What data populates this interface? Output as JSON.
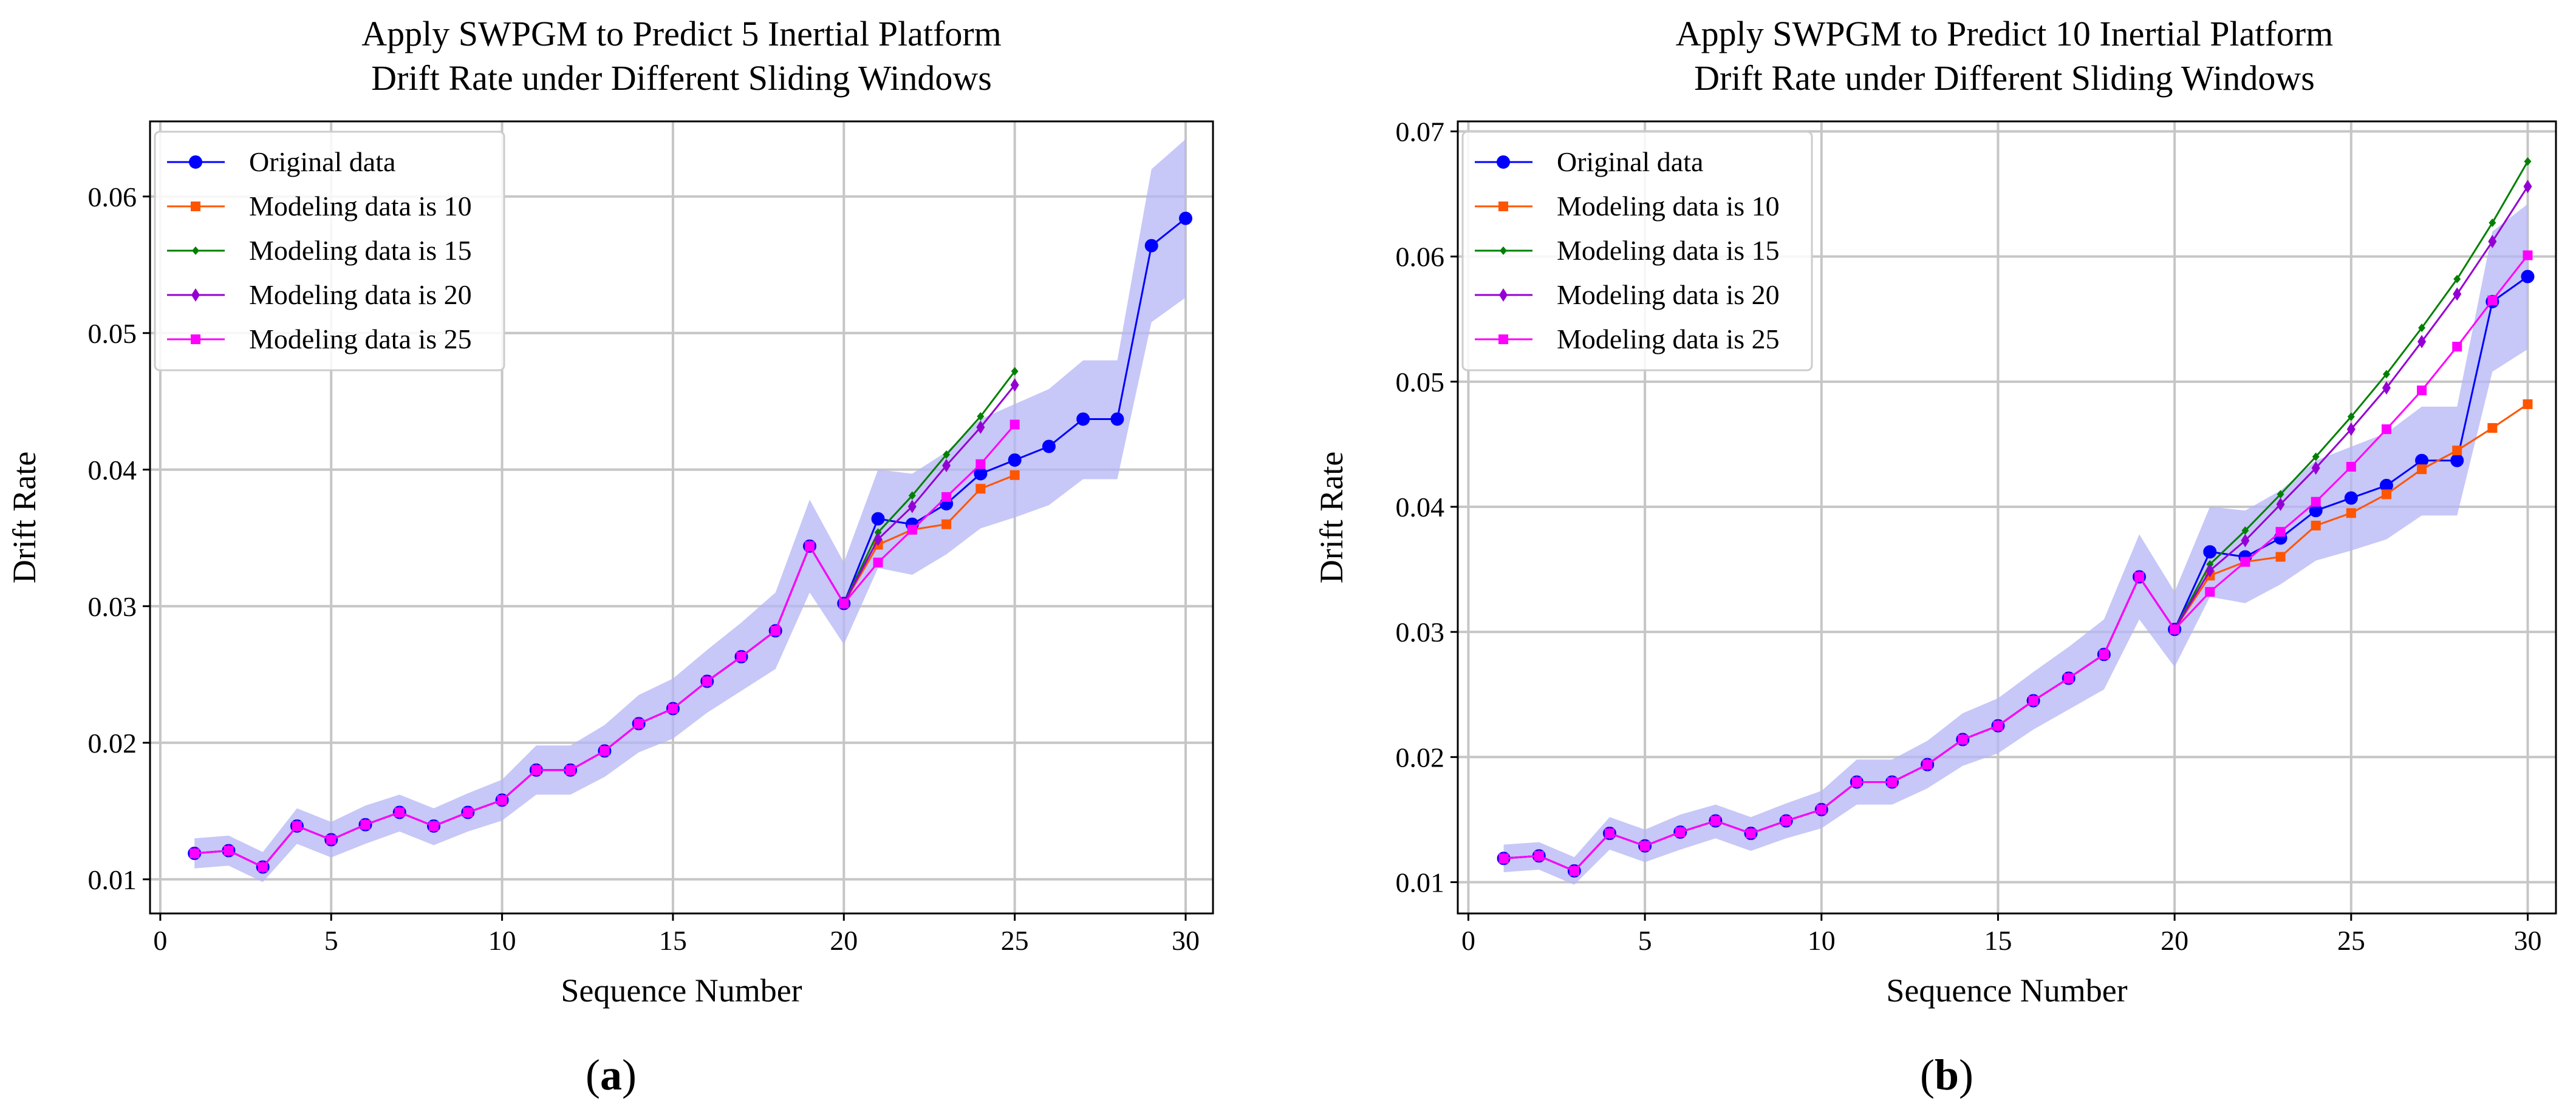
{
  "colors": {
    "original": "#0000ff",
    "m10": "#ff5500",
    "m15": "#008000",
    "m20": "#9400d3",
    "m25": "#ff00ff",
    "band": "#b4b4f5",
    "grid": "#c6c6c6"
  },
  "chart_data": [
    {
      "type": "line",
      "caption": "a",
      "title_lines": [
        "Apply SWPGM to Predict 5 Inertial Platform",
        "Drift Rate under Different Sliding Windows"
      ],
      "xlabel": "Sequence Number",
      "ylabel": "Drift Rate",
      "xlim": [
        -0.3,
        30.8
      ],
      "ylim": [
        0.0075,
        0.0655
      ],
      "xticks": [
        0,
        5,
        10,
        15,
        20,
        25,
        30
      ],
      "yticks": [
        0.01,
        0.02,
        0.03,
        0.04,
        0.05,
        0.06
      ],
      "grid": true,
      "legend_position": "upper-left",
      "band": {
        "x": [
          1,
          2,
          3,
          4,
          5,
          6,
          7,
          8,
          9,
          10,
          11,
          12,
          13,
          14,
          15,
          16,
          17,
          18,
          19,
          20,
          21,
          22,
          23,
          24,
          25,
          26,
          27,
          28,
          29,
          30
        ],
        "lower": [
          0.0108,
          0.011,
          0.0098,
          0.0126,
          0.0116,
          0.0126,
          0.0135,
          0.0125,
          0.0135,
          0.0143,
          0.0162,
          0.0162,
          0.0175,
          0.0193,
          0.0203,
          0.0222,
          0.0238,
          0.0254,
          0.031,
          0.0272,
          0.0328,
          0.0323,
          0.0338,
          0.0357,
          0.0365,
          0.0374,
          0.0393,
          0.0393,
          0.0508,
          0.0526
        ],
        "upper": [
          0.013,
          0.0132,
          0.012,
          0.0152,
          0.0142,
          0.0154,
          0.0162,
          0.0152,
          0.0163,
          0.0173,
          0.0198,
          0.0198,
          0.0213,
          0.0235,
          0.0247,
          0.0268,
          0.0288,
          0.031,
          0.0378,
          0.0332,
          0.04,
          0.0397,
          0.0413,
          0.0437,
          0.0448,
          0.0459,
          0.048,
          0.048,
          0.062,
          0.0642
        ]
      },
      "series": [
        {
          "name": "Original data",
          "key": "original",
          "marker": "circle",
          "x": [
            1,
            2,
            3,
            4,
            5,
            6,
            7,
            8,
            9,
            10,
            11,
            12,
            13,
            14,
            15,
            16,
            17,
            18,
            19,
            20,
            21,
            22,
            23,
            24,
            25,
            26,
            27,
            28,
            29,
            30
          ],
          "y": [
            0.0119,
            0.0121,
            0.0109,
            0.0139,
            0.0129,
            0.014,
            0.0149,
            0.0139,
            0.0149,
            0.0158,
            0.018,
            0.018,
            0.0194,
            0.0214,
            0.0225,
            0.0245,
            0.0263,
            0.0282,
            0.0344,
            0.0302,
            0.0364,
            0.036,
            0.0375,
            0.0397,
            0.0407,
            0.0417,
            0.0437,
            0.0437,
            0.0564,
            0.0584
          ]
        },
        {
          "name": "Modeling data is 10",
          "key": "m10",
          "marker": "square",
          "x": [
            1,
            2,
            3,
            4,
            5,
            6,
            7,
            8,
            9,
            10,
            11,
            12,
            13,
            14,
            15,
            16,
            17,
            18,
            19,
            20,
            21,
            22,
            23,
            24,
            25
          ],
          "y": [
            0.0119,
            0.0121,
            0.0109,
            0.0139,
            0.0129,
            0.014,
            0.0149,
            0.0139,
            0.0149,
            0.0158,
            0.018,
            0.018,
            0.0194,
            0.0214,
            0.0225,
            0.0245,
            0.0263,
            0.0282,
            0.0344,
            0.0302,
            0.0345,
            0.0356,
            0.036,
            0.0386,
            0.0396
          ]
        },
        {
          "name": "Modeling data is 15",
          "key": "m15",
          "marker": "plus",
          "x": [
            1,
            2,
            3,
            4,
            5,
            6,
            7,
            8,
            9,
            10,
            11,
            12,
            13,
            14,
            15,
            16,
            17,
            18,
            19,
            20,
            21,
            22,
            23,
            24,
            25
          ],
          "y": [
            0.0119,
            0.0121,
            0.0109,
            0.0139,
            0.0129,
            0.014,
            0.0149,
            0.0139,
            0.0149,
            0.0158,
            0.018,
            0.018,
            0.0194,
            0.0214,
            0.0225,
            0.0245,
            0.0263,
            0.0282,
            0.0344,
            0.0302,
            0.0354,
            0.0381,
            0.0411,
            0.0439,
            0.0472
          ]
        },
        {
          "name": "Modeling data is 20",
          "key": "m20",
          "marker": "diamond",
          "x": [
            1,
            2,
            3,
            4,
            5,
            6,
            7,
            8,
            9,
            10,
            11,
            12,
            13,
            14,
            15,
            16,
            17,
            18,
            19,
            20,
            21,
            22,
            23,
            24,
            25
          ],
          "y": [
            0.0119,
            0.0121,
            0.0109,
            0.0139,
            0.0129,
            0.014,
            0.0149,
            0.0139,
            0.0149,
            0.0158,
            0.018,
            0.018,
            0.0194,
            0.0214,
            0.0225,
            0.0245,
            0.0263,
            0.0282,
            0.0344,
            0.0302,
            0.0349,
            0.0373,
            0.0403,
            0.0431,
            0.0462
          ]
        },
        {
          "name": "Modeling data is 25",
          "key": "m25",
          "marker": "square",
          "x": [
            1,
            2,
            3,
            4,
            5,
            6,
            7,
            8,
            9,
            10,
            11,
            12,
            13,
            14,
            15,
            16,
            17,
            18,
            19,
            20,
            21,
            22,
            23,
            24,
            25
          ],
          "y": [
            0.0119,
            0.0121,
            0.0109,
            0.0139,
            0.0129,
            0.014,
            0.0149,
            0.0139,
            0.0149,
            0.0158,
            0.018,
            0.018,
            0.0194,
            0.0214,
            0.0225,
            0.0245,
            0.0263,
            0.0282,
            0.0344,
            0.0302,
            0.0332,
            0.0356,
            0.038,
            0.0404,
            0.0433
          ]
        }
      ]
    },
    {
      "type": "line",
      "caption": "b",
      "title_lines": [
        "Apply SWPGM to Predict 10 Inertial Platform",
        "Drift Rate under Different Sliding Windows"
      ],
      "xlabel": "Sequence Number",
      "ylabel": "Drift Rate",
      "xlim": [
        -0.3,
        30.8
      ],
      "ylim": [
        0.0075,
        0.0708
      ],
      "xticks": [
        0,
        5,
        10,
        15,
        20,
        25,
        30
      ],
      "yticks": [
        0.01,
        0.02,
        0.03,
        0.04,
        0.05,
        0.06,
        0.07
      ],
      "grid": true,
      "legend_position": "upper-left",
      "band": {
        "x": [
          1,
          2,
          3,
          4,
          5,
          6,
          7,
          8,
          9,
          10,
          11,
          12,
          13,
          14,
          15,
          16,
          17,
          18,
          19,
          20,
          21,
          22,
          23,
          24,
          25,
          26,
          27,
          28,
          29,
          30
        ],
        "lower": [
          0.0108,
          0.011,
          0.0098,
          0.0126,
          0.0116,
          0.0126,
          0.0135,
          0.0125,
          0.0135,
          0.0143,
          0.0162,
          0.0162,
          0.0175,
          0.0193,
          0.0203,
          0.0222,
          0.0238,
          0.0254,
          0.031,
          0.0272,
          0.0328,
          0.0323,
          0.0338,
          0.0357,
          0.0365,
          0.0374,
          0.0393,
          0.0393,
          0.0508,
          0.0526
        ],
        "upper": [
          0.013,
          0.0132,
          0.012,
          0.0152,
          0.0142,
          0.0154,
          0.0162,
          0.0152,
          0.0163,
          0.0173,
          0.0198,
          0.0198,
          0.0213,
          0.0235,
          0.0247,
          0.0268,
          0.0288,
          0.031,
          0.0378,
          0.0332,
          0.04,
          0.0397,
          0.0413,
          0.0437,
          0.0448,
          0.0459,
          0.048,
          0.048,
          0.062,
          0.0642
        ]
      },
      "series": [
        {
          "name": "Original data",
          "key": "original",
          "marker": "circle",
          "x": [
            1,
            2,
            3,
            4,
            5,
            6,
            7,
            8,
            9,
            10,
            11,
            12,
            13,
            14,
            15,
            16,
            17,
            18,
            19,
            20,
            21,
            22,
            23,
            24,
            25,
            26,
            27,
            28,
            29,
            30
          ],
          "y": [
            0.0119,
            0.0121,
            0.0109,
            0.0139,
            0.0129,
            0.014,
            0.0149,
            0.0139,
            0.0149,
            0.0158,
            0.018,
            0.018,
            0.0194,
            0.0214,
            0.0225,
            0.0245,
            0.0263,
            0.0282,
            0.0344,
            0.0302,
            0.0364,
            0.036,
            0.0375,
            0.0397,
            0.0407,
            0.0417,
            0.0437,
            0.0437,
            0.0564,
            0.0584
          ]
        },
        {
          "name": "Modeling data is 10",
          "key": "m10",
          "marker": "square",
          "x": [
            1,
            2,
            3,
            4,
            5,
            6,
            7,
            8,
            9,
            10,
            11,
            12,
            13,
            14,
            15,
            16,
            17,
            18,
            19,
            20,
            21,
            22,
            23,
            24,
            25,
            26,
            27,
            28,
            29,
            30
          ],
          "y": [
            0.0119,
            0.0121,
            0.0109,
            0.0139,
            0.0129,
            0.014,
            0.0149,
            0.0139,
            0.0149,
            0.0158,
            0.018,
            0.018,
            0.0194,
            0.0214,
            0.0225,
            0.0245,
            0.0263,
            0.0282,
            0.0344,
            0.0302,
            0.0345,
            0.0356,
            0.036,
            0.0385,
            0.0395,
            0.041,
            0.043,
            0.0445,
            0.0463,
            0.0482
          ]
        },
        {
          "name": "Modeling data is 15",
          "key": "m15",
          "marker": "plus",
          "x": [
            1,
            2,
            3,
            4,
            5,
            6,
            7,
            8,
            9,
            10,
            11,
            12,
            13,
            14,
            15,
            16,
            17,
            18,
            19,
            20,
            21,
            22,
            23,
            24,
            25,
            26,
            27,
            28,
            29,
            30
          ],
          "y": [
            0.0119,
            0.0121,
            0.0109,
            0.0139,
            0.0129,
            0.014,
            0.0149,
            0.0139,
            0.0149,
            0.0158,
            0.018,
            0.018,
            0.0194,
            0.0214,
            0.0225,
            0.0245,
            0.0263,
            0.0282,
            0.0344,
            0.0302,
            0.0354,
            0.0381,
            0.041,
            0.044,
            0.0472,
            0.0506,
            0.0543,
            0.0582,
            0.0627,
            0.0676
          ]
        },
        {
          "name": "Modeling data is 20",
          "key": "m20",
          "marker": "diamond",
          "x": [
            1,
            2,
            3,
            4,
            5,
            6,
            7,
            8,
            9,
            10,
            11,
            12,
            13,
            14,
            15,
            16,
            17,
            18,
            19,
            20,
            21,
            22,
            23,
            24,
            25,
            26,
            27,
            28,
            29,
            30
          ],
          "y": [
            0.0119,
            0.0121,
            0.0109,
            0.0139,
            0.0129,
            0.014,
            0.0149,
            0.0139,
            0.0149,
            0.0158,
            0.018,
            0.018,
            0.0194,
            0.0214,
            0.0225,
            0.0245,
            0.0263,
            0.0282,
            0.0344,
            0.0302,
            0.0349,
            0.0373,
            0.0402,
            0.0431,
            0.0462,
            0.0495,
            0.0532,
            0.057,
            0.0612,
            0.0656
          ]
        },
        {
          "name": "Modeling data is 25",
          "key": "m25",
          "marker": "square",
          "x": [
            1,
            2,
            3,
            4,
            5,
            6,
            7,
            8,
            9,
            10,
            11,
            12,
            13,
            14,
            15,
            16,
            17,
            18,
            19,
            20,
            21,
            22,
            23,
            24,
            25,
            26,
            27,
            28,
            29,
            30
          ],
          "y": [
            0.0119,
            0.0121,
            0.0109,
            0.0139,
            0.0129,
            0.014,
            0.0149,
            0.0139,
            0.0149,
            0.0158,
            0.018,
            0.018,
            0.0194,
            0.0214,
            0.0225,
            0.0245,
            0.0263,
            0.0282,
            0.0344,
            0.0302,
            0.0332,
            0.0356,
            0.038,
            0.0404,
            0.0432,
            0.0462,
            0.0493,
            0.0528,
            0.0565,
            0.0601
          ]
        }
      ]
    }
  ]
}
